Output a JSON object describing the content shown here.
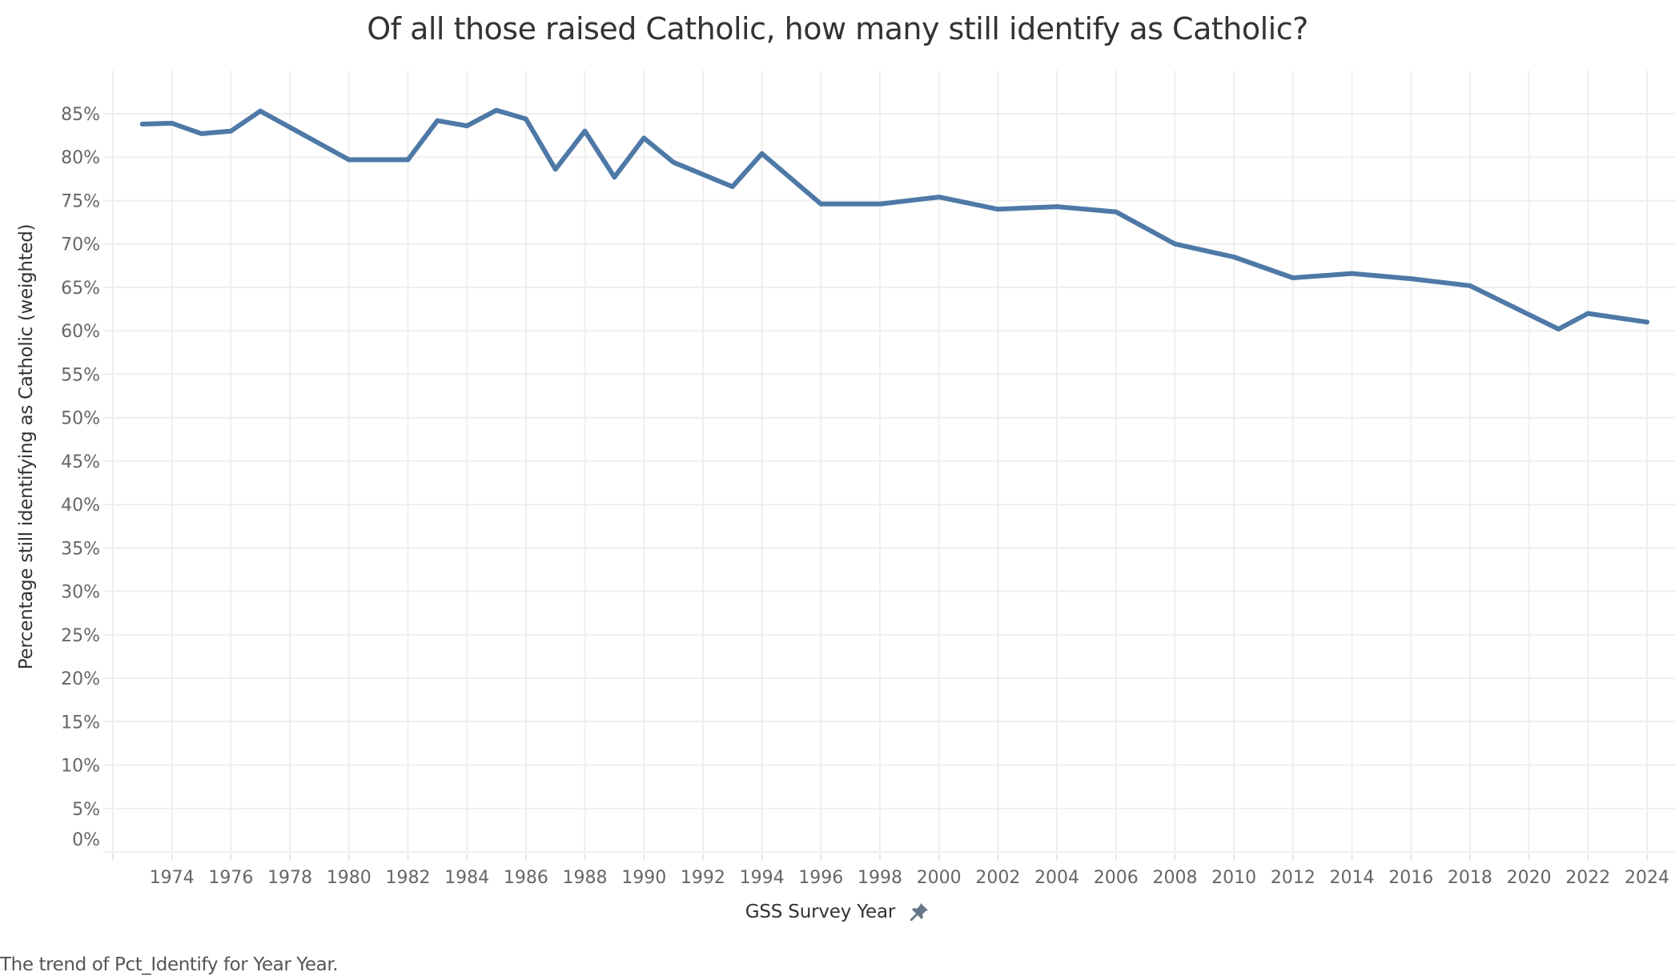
{
  "chart_data": {
    "type": "line",
    "title": "Of all those raised Catholic, how many still identify as Catholic?",
    "xlabel": "GSS Survey Year",
    "ylabel": "Percentage still identifying as Catholic (weighted)",
    "xlim": [
      1972,
      2025
    ],
    "ylim": [
      0,
      90
    ],
    "grid": true,
    "x_ticks": [
      "1974",
      "1976",
      "1978",
      "1980",
      "1982",
      "1984",
      "1986",
      "1988",
      "1990",
      "1992",
      "1994",
      "1996",
      "1998",
      "2000",
      "2002",
      "2004",
      "2006",
      "2008",
      "2010",
      "2012",
      "2014",
      "2016",
      "2018",
      "2020",
      "2022",
      "2024"
    ],
    "y_ticks": [
      "0%",
      "5%",
      "10%",
      "15%",
      "20%",
      "25%",
      "30%",
      "35%",
      "40%",
      "45%",
      "50%",
      "55%",
      "60%",
      "65%",
      "70%",
      "75%",
      "80%",
      "85%"
    ],
    "series": [
      {
        "name": "Pct_Identify",
        "color": "#4e79a7",
        "x": [
          1973,
          1974,
          1975,
          1976,
          1977,
          1980,
          1982,
          1983,
          1984,
          1985,
          1986,
          1987,
          1988,
          1989,
          1990,
          1991,
          1993,
          1994,
          1996,
          1998,
          2000,
          2002,
          2004,
          2006,
          2008,
          2010,
          2012,
          2014,
          2016,
          2018,
          2021,
          2022,
          2024
        ],
        "values": [
          83.8,
          83.9,
          82.7,
          83.0,
          85.3,
          79.7,
          79.7,
          84.2,
          83.6,
          85.4,
          84.4,
          78.6,
          83.0,
          77.7,
          82.2,
          79.4,
          76.6,
          80.4,
          74.6,
          74.6,
          75.4,
          74.0,
          74.3,
          73.7,
          70.0,
          68.5,
          66.1,
          66.6,
          66.0,
          65.2,
          60.2,
          62.0,
          61.0
        ]
      }
    ]
  },
  "footer": "The trend of Pct_Identify for Year Year.",
  "icons": {
    "x_axis_pin": "pin-icon"
  },
  "colors": {
    "line": "#4e79a7",
    "grid": "#efefef",
    "pin": "#66778a"
  }
}
